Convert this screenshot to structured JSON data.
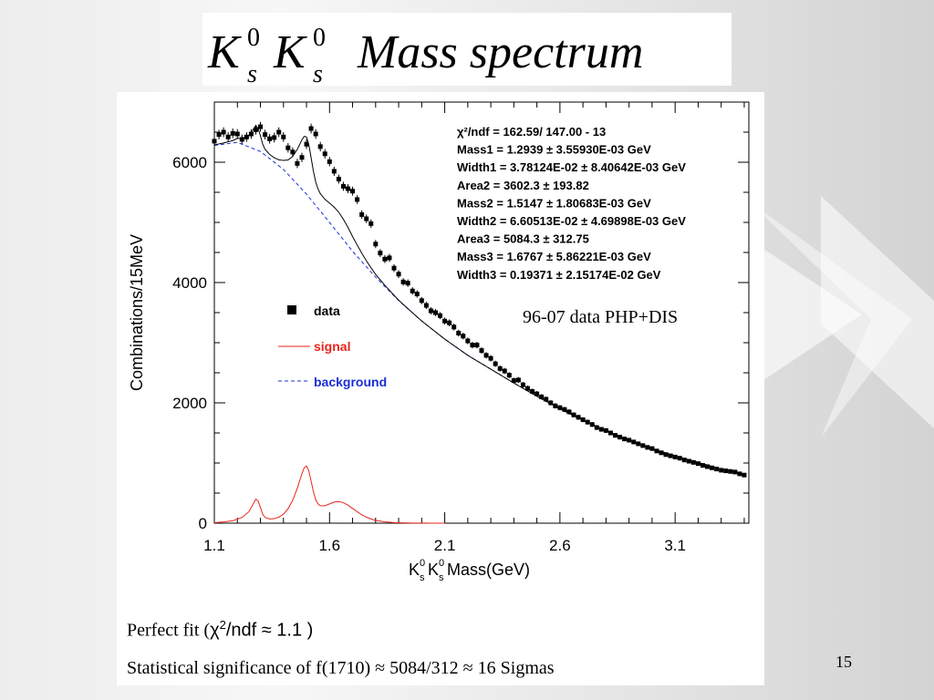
{
  "slide": {
    "title_main": "K",
    "title_sub": "s",
    "title_sup": "0",
    "title_words": "Mass spectrum",
    "caption1_prefix": "Perfect fit (",
    "caption1_formula": "χ",
    "caption1_sup": "2",
    "caption1_tail": "/ndf ≈ 1.1 )",
    "caption2": "Statistical significance of f(1710) ≈ 5084/312 ≈ 16 Sigmas",
    "page_number": "15"
  },
  "chart_data": {
    "type": "scatter",
    "xlabel_parts": [
      "K",
      "0",
      "s",
      "K",
      "0",
      "s",
      " Mass(GeV)"
    ],
    "ylabel": "Combinations/15MeV",
    "xlim": [
      1.1,
      3.42
    ],
    "ylim": [
      0,
      7000
    ],
    "x_ticks": [
      "1.1",
      "1.6",
      "2.1",
      "2.6",
      "3.1"
    ],
    "x_tick_values": [
      1.1,
      1.6,
      2.1,
      2.6,
      3.1
    ],
    "y_ticks": [
      "0",
      "2000",
      "4000",
      "6000"
    ],
    "y_tick_values": [
      0,
      2000,
      4000,
      6000
    ],
    "legend": [
      {
        "label": "data",
        "color": "#000000",
        "style": "marker"
      },
      {
        "label": "signal",
        "color": "#e8261b",
        "style": "solid"
      },
      {
        "label": "background",
        "color": "#1a2fd6",
        "style": "dashed"
      }
    ],
    "legend_placement": "middle-left",
    "annotation": "96-07 data PHP+DIS",
    "fit_stats": [
      {
        "label": "χ²/ndf =",
        "value": "162.59/  147.00 - 13"
      },
      {
        "label": "Mass1 =",
        "value": "1.2939 ±  3.55930E-03 GeV"
      },
      {
        "label": "Width1 =",
        "value": "3.78124E-02 ±  8.40642E-03 GeV"
      },
      {
        "label": "Area2 =",
        "value": "3602.3 ±   193.82"
      },
      {
        "label": "Mass2 =",
        "value": "1.5147 ±  1.80683E-03 GeV"
      },
      {
        "label": "Width2 =",
        "value": "6.60513E-02 ±  4.69898E-03 GeV"
      },
      {
        "label": "Area3 =",
        "value": "5084.3 ±   312.75"
      },
      {
        "label": "Mass3 =",
        "value": "1.6767 ±  5.86221E-03 GeV"
      },
      {
        "label": "Width3 =",
        "value": "0.19371 ±  2.15174E-02 GeV"
      }
    ],
    "series": [
      {
        "name": "data",
        "x": [
          1.1,
          1.12,
          1.14,
          1.16,
          1.18,
          1.2,
          1.22,
          1.24,
          1.26,
          1.28,
          1.3,
          1.32,
          1.34,
          1.36,
          1.38,
          1.4,
          1.42,
          1.44,
          1.46,
          1.48,
          1.5,
          1.52,
          1.54,
          1.56,
          1.58,
          1.6,
          1.62,
          1.64,
          1.66,
          1.68,
          1.7,
          1.72,
          1.74,
          1.76,
          1.78,
          1.8,
          1.82,
          1.84,
          1.86,
          1.88,
          1.9,
          1.92,
          1.94,
          1.96,
          1.98,
          2.0,
          2.02,
          2.04,
          2.06,
          2.08,
          2.1,
          2.12,
          2.14,
          2.16,
          2.18,
          2.2,
          2.22,
          2.24,
          2.26,
          2.28,
          2.3,
          2.32,
          2.34,
          2.36,
          2.38,
          2.4,
          2.42,
          2.44,
          2.46,
          2.48,
          2.5,
          2.52,
          2.54,
          2.56,
          2.58,
          2.6,
          2.62,
          2.64,
          2.66,
          2.68,
          2.7,
          2.72,
          2.74,
          2.76,
          2.78,
          2.8,
          2.82,
          2.84,
          2.86,
          2.88,
          2.9,
          2.92,
          2.94,
          2.96,
          2.98,
          3.0,
          3.02,
          3.04,
          3.06,
          3.08,
          3.1,
          3.12,
          3.14,
          3.16,
          3.18,
          3.2,
          3.22,
          3.24,
          3.26,
          3.28,
          3.3,
          3.32,
          3.34,
          3.36,
          3.38,
          3.4
        ],
        "y": [
          6350,
          6460,
          6500,
          6420,
          6480,
          6470,
          6380,
          6420,
          6470,
          6540,
          6590,
          6460,
          6390,
          6410,
          6500,
          6420,
          6240,
          6170,
          5980,
          6080,
          6300,
          6560,
          6470,
          6260,
          6140,
          6010,
          5850,
          5720,
          5600,
          5560,
          5520,
          5380,
          5130,
          5060,
          4980,
          4640,
          4490,
          4390,
          4410,
          4240,
          4140,
          4010,
          3990,
          3860,
          3810,
          3700,
          3620,
          3530,
          3500,
          3450,
          3360,
          3330,
          3260,
          3160,
          3110,
          3030,
          2960,
          2960,
          2870,
          2790,
          2740,
          2650,
          2570,
          2530,
          2460,
          2370,
          2380,
          2300,
          2240,
          2190,
          2150,
          2100,
          2060,
          2000,
          1950,
          1920,
          1890,
          1850,
          1800,
          1760,
          1720,
          1680,
          1640,
          1590,
          1560,
          1540,
          1500,
          1460,
          1430,
          1400,
          1380,
          1350,
          1320,
          1290,
          1260,
          1240,
          1200,
          1170,
          1140,
          1120,
          1100,
          1080,
          1050,
          1030,
          1010,
          990,
          960,
          940,
          920,
          900,
          880,
          870,
          860,
          850,
          820,
          800
        ]
      },
      {
        "name": "signal",
        "x": [
          1.1,
          1.14,
          1.18,
          1.22,
          1.25,
          1.27,
          1.28,
          1.29,
          1.3,
          1.31,
          1.32,
          1.34,
          1.36,
          1.38,
          1.4,
          1.42,
          1.44,
          1.46,
          1.48,
          1.49,
          1.5,
          1.51,
          1.52,
          1.53,
          1.54,
          1.55,
          1.56,
          1.58,
          1.6,
          1.62,
          1.64,
          1.66,
          1.68,
          1.7,
          1.72,
          1.74,
          1.76,
          1.78,
          1.8,
          1.84,
          1.88,
          1.92,
          1.96,
          2.0,
          2.05,
          2.1
        ],
        "y": [
          8,
          20,
          40,
          95,
          190,
          330,
          400,
          370,
          260,
          150,
          95,
          70,
          75,
          100,
          150,
          240,
          380,
          580,
          820,
          920,
          950,
          870,
          700,
          520,
          390,
          320,
          290,
          290,
          320,
          350,
          360,
          340,
          300,
          245,
          190,
          140,
          100,
          70,
          45,
          22,
          10,
          5,
          2,
          1,
          0,
          0
        ]
      },
      {
        "name": "background",
        "x": [
          1.1,
          1.2,
          1.3,
          1.4,
          1.5,
          1.6,
          1.7,
          1.8,
          1.9,
          2.0,
          2.1,
          2.2,
          2.3,
          2.4,
          2.5,
          2.6,
          2.7,
          2.8,
          2.9,
          3.0,
          3.1,
          3.2,
          3.3,
          3.4
        ],
        "y": [
          6280,
          6330,
          6180,
          5880,
          5470,
          5000,
          4520,
          4090,
          3700,
          3360,
          3060,
          2790,
          2560,
          2330,
          2110,
          1900,
          1710,
          1540,
          1380,
          1240,
          1120,
          1010,
          900,
          810
        ]
      }
    ]
  }
}
